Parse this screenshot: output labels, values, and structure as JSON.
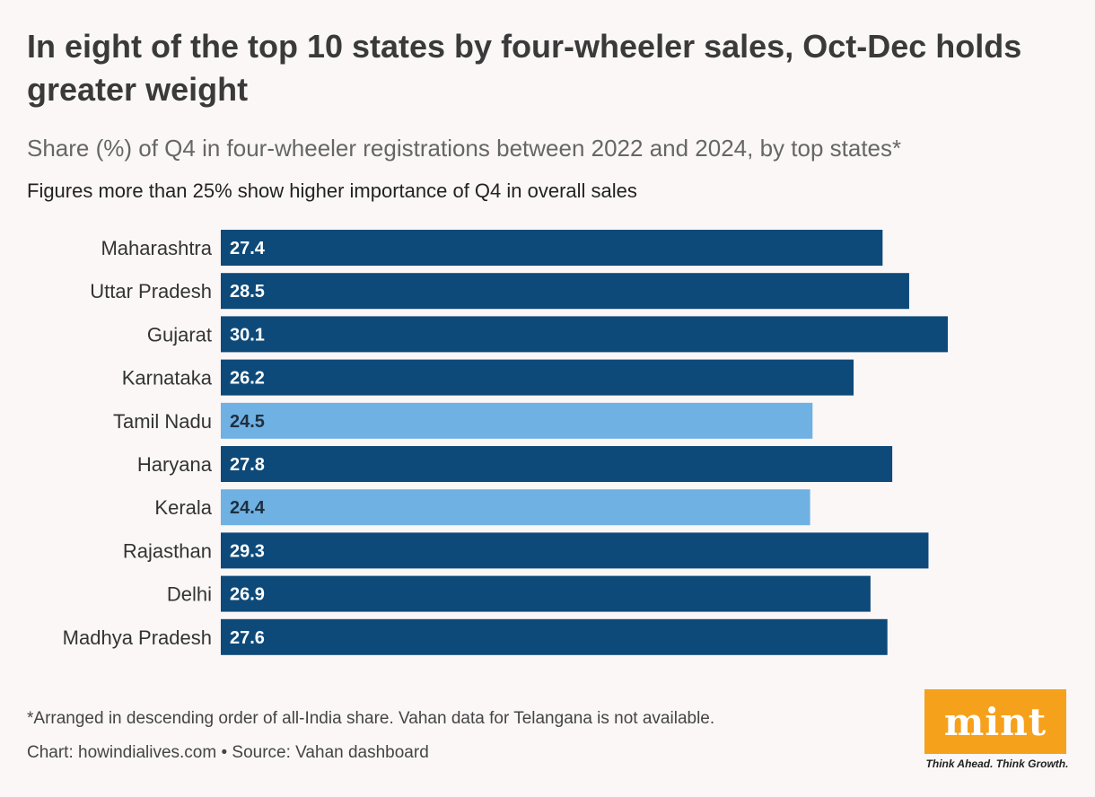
{
  "header": {
    "title": "In eight of the top 10 states by four-wheeler sales, Oct-Dec holds greater weight",
    "subtitle": "Share (%) of Q4 in four-wheeler registrations between 2022 and 2024, by top states*",
    "note": "Figures more than 25% show higher importance of Q4 in overall sales"
  },
  "chart_data": {
    "type": "bar",
    "orientation": "horizontal",
    "title": "In eight of the top 10 states by four-wheeler sales, Oct-Dec holds greater weight",
    "categories": [
      "Maharashtra",
      "Uttar Pradesh",
      "Gujarat",
      "Karnataka",
      "Tamil Nadu",
      "Haryana",
      "Kerala",
      "Rajasthan",
      "Delhi",
      "Madhya Pradesh"
    ],
    "values": [
      27.4,
      28.5,
      30.1,
      26.2,
      24.5,
      27.8,
      24.4,
      29.3,
      26.9,
      27.6
    ],
    "threshold": 25,
    "colors": {
      "above": "#0d4a7a",
      "below": "#6fb1e2",
      "label_above": "#ffffff",
      "label_below": "#1f2f3f"
    },
    "xlim": [
      0,
      30.1
    ],
    "grid": false,
    "xlabel": "",
    "ylabel": ""
  },
  "footer": {
    "footnote": "*Arranged in descending order of all-India share. Vahan data for Telangana is not available.",
    "credit": "Chart: howindialives.com • Source: Vahan dashboard"
  },
  "brand": {
    "logo_text": "mint",
    "tagline": "Think Ahead. Think Growth.",
    "color": "#f6a11b"
  }
}
